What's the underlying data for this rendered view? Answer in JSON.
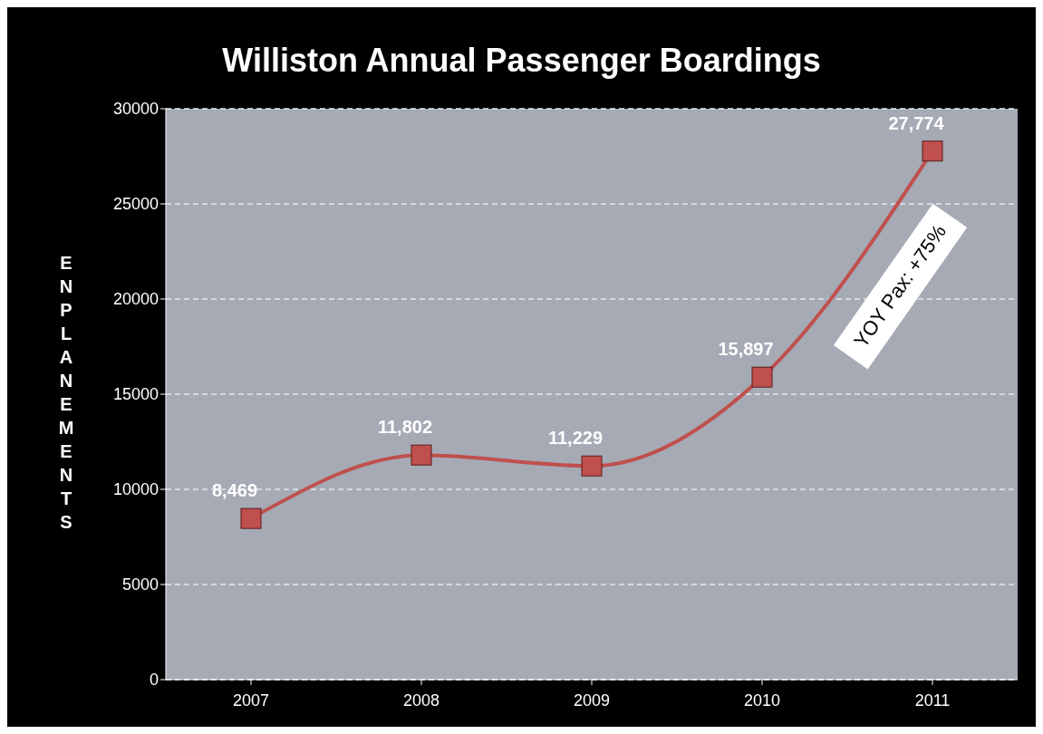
{
  "chart_data": {
    "type": "line",
    "title": "Williston Annual Passenger Boardings",
    "ylabel": "ENPLANEMENTS",
    "categories": [
      "2007",
      "2008",
      "2009",
      "2010",
      "2011"
    ],
    "series": [
      {
        "color": "#c0504d",
        "values": [
          8469,
          11802,
          11229,
          15897,
          27774
        ],
        "value_labels": [
          "8,469",
          "11,802",
          "11,229",
          "15,897",
          "27,774"
        ]
      }
    ],
    "ylim": [
      0,
      30000
    ],
    "yticks": [
      0,
      5000,
      10000,
      15000,
      20000,
      25000,
      30000
    ],
    "grid": "y",
    "marker": "square",
    "line_style": "solid",
    "annotations": [
      "YOY Pax: +75%"
    ]
  }
}
